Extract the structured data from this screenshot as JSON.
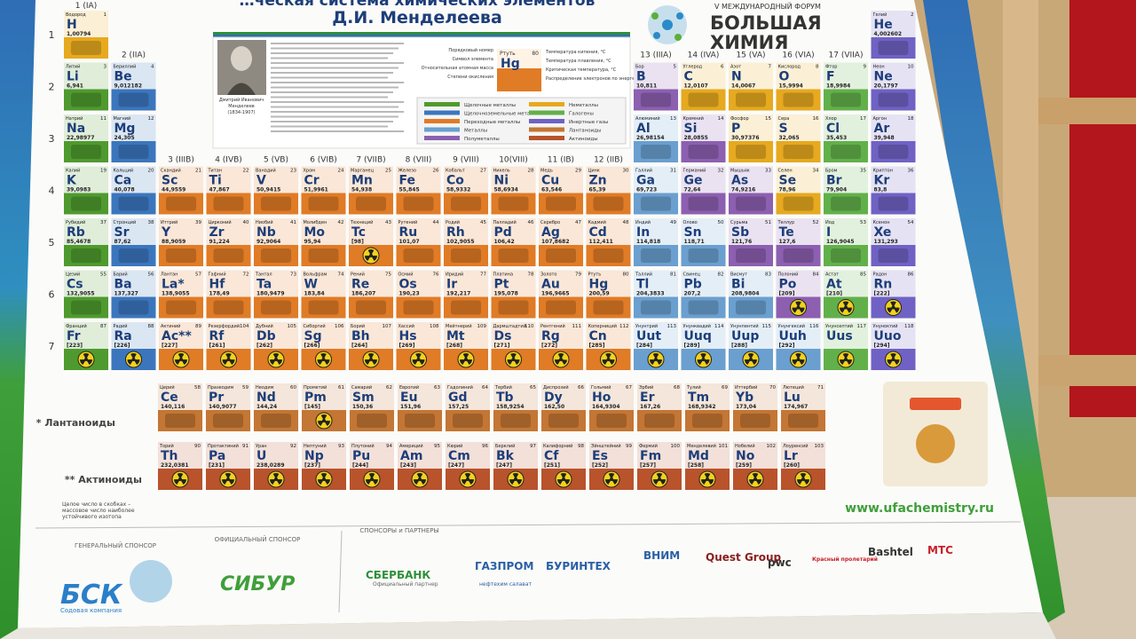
{
  "header": {
    "title_line1": "…ческая система химических элементов",
    "title_line2": "Д.И. Менделеева",
    "forum_edition": "V МЕЖДУНАРОДНЫЙ ФОРУМ",
    "forum_name_1": "БОЛЬШАЯ",
    "forum_name_2": "ХИМИЯ"
  },
  "portrait_caption": [
    "Дмитрий Иванович",
    "Менделеев",
    "(1834-1907)"
  ],
  "key": {
    "element_name": "Ртуть",
    "symbol": "Hg",
    "number": 80,
    "left_labels": [
      "Порядковый номер",
      "Символ элемента",
      "Относительная атомная масса",
      "Степени окисления"
    ],
    "right_labels": [
      "Температура кипения, °С",
      "Температура плавления, °С",
      "Критическая температура, °С",
      "Распределение электронов по энергетическим уровням"
    ]
  },
  "legend": [
    {
      "name": "Щелочные металлы",
      "color": "#4f9a2e"
    },
    {
      "name": "Щелочноземельные металлы",
      "color": "#3b76bd"
    },
    {
      "name": "Переходные металлы",
      "color": "#e07b26"
    },
    {
      "name": "Металлы",
      "color": "#6a9fcf"
    },
    {
      "name": "Полуметаллы",
      "color": "#8c5fb0"
    },
    {
      "name": "Неметаллы",
      "color": "#e6a91f"
    },
    {
      "name": "Галогены",
      "color": "#62b04a"
    },
    {
      "name": "Инертные газы",
      "color": "#6f62c4"
    },
    {
      "name": "Лантаноиды",
      "color": "#c47634"
    },
    {
      "name": "Актиноиды",
      "color": "#b8532c"
    }
  ],
  "groups": [
    "1 (IA)",
    "2 (IIA)",
    "3 (IIIB)",
    "4 (IVB)",
    "5 (VB)",
    "6 (VIB)",
    "7 (VIIB)",
    "8 (VIII)",
    "9 (VIII)",
    "10(VIII)",
    "11 (IB)",
    "12 (IIB)",
    "13 (IIIA)",
    "14 (IVA)",
    "15 (VA)",
    "16 (VIA)",
    "17 (VIIA)",
    "18 (VIIIA)"
  ],
  "periods": [
    "1",
    "2",
    "3",
    "4",
    "5",
    "6",
    "7"
  ],
  "elements": [
    {
      "number": 1,
      "symbol": "H",
      "name": "Водород",
      "mass": "1,00794"
    },
    {
      "number": 2,
      "symbol": "He",
      "name": "Гелий",
      "mass": "4,002602"
    },
    {
      "number": 3,
      "symbol": "Li",
      "name": "Литий",
      "mass": "6,941"
    },
    {
      "number": 4,
      "symbol": "Be",
      "name": "Бериллий",
      "mass": "9,012182"
    },
    {
      "number": 5,
      "symbol": "B",
      "name": "Бор",
      "mass": "10,811"
    },
    {
      "number": 6,
      "symbol": "C",
      "name": "Углерод",
      "mass": "12,0107"
    },
    {
      "number": 7,
      "symbol": "N",
      "name": "Азот",
      "mass": "14,0067"
    },
    {
      "number": 8,
      "symbol": "O",
      "name": "Кислород",
      "mass": "15,9994"
    },
    {
      "number": 9,
      "symbol": "F",
      "name": "Фтор",
      "mass": "18,9984"
    },
    {
      "number": 10,
      "symbol": "Ne",
      "name": "Неон",
      "mass": "20,1797"
    },
    {
      "number": 11,
      "symbol": "Na",
      "name": "Натрий",
      "mass": "22,98977"
    },
    {
      "number": 12,
      "symbol": "Mg",
      "name": "Магний",
      "mass": "24,305"
    },
    {
      "number": 13,
      "symbol": "Al",
      "name": "Алюминий",
      "mass": "26,98154"
    },
    {
      "number": 14,
      "symbol": "Si",
      "name": "Кремний",
      "mass": "28,0855"
    },
    {
      "number": 15,
      "symbol": "P",
      "name": "Фосфор",
      "mass": "30,97376"
    },
    {
      "number": 16,
      "symbol": "S",
      "name": "Сера",
      "mass": "32,065"
    },
    {
      "number": 17,
      "symbol": "Cl",
      "name": "Хлор",
      "mass": "35,453"
    },
    {
      "number": 18,
      "symbol": "Ar",
      "name": "Аргон",
      "mass": "39,948"
    },
    {
      "number": 19,
      "symbol": "K",
      "name": "Калий",
      "mass": "39,0983"
    },
    {
      "number": 20,
      "symbol": "Ca",
      "name": "Кальций",
      "mass": "40,078"
    },
    {
      "number": 21,
      "symbol": "Sc",
      "name": "Скандий",
      "mass": "44,9559"
    },
    {
      "number": 22,
      "symbol": "Ti",
      "name": "Титан",
      "mass": "47,867"
    },
    {
      "number": 23,
      "symbol": "V",
      "name": "Ванадий",
      "mass": "50,9415"
    },
    {
      "number": 24,
      "symbol": "Cr",
      "name": "Хром",
      "mass": "51,9961"
    },
    {
      "number": 25,
      "symbol": "Mn",
      "name": "Марганец",
      "mass": "54,938"
    },
    {
      "number": 26,
      "symbol": "Fe",
      "name": "Железо",
      "mass": "55,845"
    },
    {
      "number": 27,
      "symbol": "Co",
      "name": "Кобальт",
      "mass": "58,9332"
    },
    {
      "number": 28,
      "symbol": "Ni",
      "name": "Никель",
      "mass": "58,6934"
    },
    {
      "number": 29,
      "symbol": "Cu",
      "name": "Медь",
      "mass": "63,546"
    },
    {
      "number": 30,
      "symbol": "Zn",
      "name": "Цинк",
      "mass": "65,39"
    },
    {
      "number": 31,
      "symbol": "Ga",
      "name": "Галлий",
      "mass": "69,723"
    },
    {
      "number": 32,
      "symbol": "Ge",
      "name": "Германий",
      "mass": "72,64"
    },
    {
      "number": 33,
      "symbol": "As",
      "name": "Мышьяк",
      "mass": "74,9216"
    },
    {
      "number": 34,
      "symbol": "Se",
      "name": "Селен",
      "mass": "78,96"
    },
    {
      "number": 35,
      "symbol": "Br",
      "name": "Бром",
      "mass": "79,904"
    },
    {
      "number": 36,
      "symbol": "Kr",
      "name": "Криптон",
      "mass": "83,8"
    },
    {
      "number": 37,
      "symbol": "Rb",
      "name": "Рубидий",
      "mass": "85,4678"
    },
    {
      "number": 38,
      "symbol": "Sr",
      "name": "Стронций",
      "mass": "87,62"
    },
    {
      "number": 39,
      "symbol": "Y",
      "name": "Иттрий",
      "mass": "88,9059"
    },
    {
      "number": 40,
      "symbol": "Zr",
      "name": "Цирконий",
      "mass": "91,224"
    },
    {
      "number": 41,
      "symbol": "Nb",
      "name": "Ниобий",
      "mass": "92,9064"
    },
    {
      "number": 42,
      "symbol": "Mo",
      "name": "Молибден",
      "mass": "95,94"
    },
    {
      "number": 43,
      "symbol": "Tc",
      "name": "Технеций",
      "mass": "[98]"
    },
    {
      "number": 44,
      "symbol": "Ru",
      "name": "Рутений",
      "mass": "101,07"
    },
    {
      "number": 45,
      "symbol": "Rh",
      "name": "Родий",
      "mass": "102,9055"
    },
    {
      "number": 46,
      "symbol": "Pd",
      "name": "Палладий",
      "mass": "106,42"
    },
    {
      "number": 47,
      "symbol": "Ag",
      "name": "Серебро",
      "mass": "107,8682"
    },
    {
      "number": 48,
      "symbol": "Cd",
      "name": "Кадмий",
      "mass": "112,411"
    },
    {
      "number": 49,
      "symbol": "In",
      "name": "Индий",
      "mass": "114,818"
    },
    {
      "number": 50,
      "symbol": "Sn",
      "name": "Олово",
      "mass": "118,71"
    },
    {
      "number": 51,
      "symbol": "Sb",
      "name": "Сурьма",
      "mass": "121,76"
    },
    {
      "number": 52,
      "symbol": "Te",
      "name": "Теллур",
      "mass": "127,6"
    },
    {
      "number": 53,
      "symbol": "I",
      "name": "Иод",
      "mass": "126,9045"
    },
    {
      "number": 54,
      "symbol": "Xe",
      "name": "Ксенон",
      "mass": "131,293"
    },
    {
      "number": 55,
      "symbol": "Cs",
      "name": "Цезий",
      "mass": "132,9055"
    },
    {
      "number": 56,
      "symbol": "Ba",
      "name": "Барий",
      "mass": "137,327"
    },
    {
      "number": 57,
      "symbol": "La*",
      "name": "Лантан",
      "mass": "138,9055"
    },
    {
      "number": 58,
      "symbol": "Ce",
      "name": "Церий",
      "mass": "140,116"
    },
    {
      "number": 59,
      "symbol": "Pr",
      "name": "Празеодим",
      "mass": "140,9077"
    },
    {
      "number": 60,
      "symbol": "Nd",
      "name": "Неодим",
      "mass": "144,24"
    },
    {
      "number": 61,
      "symbol": "Pm",
      "name": "Прометий",
      "mass": "[145]"
    },
    {
      "number": 62,
      "symbol": "Sm",
      "name": "Самарий",
      "mass": "150,36"
    },
    {
      "number": 63,
      "symbol": "Eu",
      "name": "Европий",
      "mass": "151,96"
    },
    {
      "number": 64,
      "symbol": "Gd",
      "name": "Гадолиний",
      "mass": "157,25"
    },
    {
      "number": 65,
      "symbol": "Tb",
      "name": "Тербий",
      "mass": "158,9254"
    },
    {
      "number": 66,
      "symbol": "Dy",
      "name": "Диспрозий",
      "mass": "162,50"
    },
    {
      "number": 67,
      "symbol": "Ho",
      "name": "Гольмий",
      "mass": "164,9304"
    },
    {
      "number": 68,
      "symbol": "Er",
      "name": "Эрбий",
      "mass": "167,26"
    },
    {
      "number": 69,
      "symbol": "Tm",
      "name": "Тулий",
      "mass": "168,9342"
    },
    {
      "number": 70,
      "symbol": "Yb",
      "name": "Иттербий",
      "mass": "173,04"
    },
    {
      "number": 71,
      "symbol": "Lu",
      "name": "Лютеций",
      "mass": "174,967"
    },
    {
      "number": 72,
      "symbol": "Hf",
      "name": "Гафний",
      "mass": "178,49"
    },
    {
      "number": 73,
      "symbol": "Ta",
      "name": "Тантал",
      "mass": "180,9479"
    },
    {
      "number": 74,
      "symbol": "W",
      "name": "Вольфрам",
      "mass": "183,84"
    },
    {
      "number": 75,
      "symbol": "Re",
      "name": "Рений",
      "mass": "186,207"
    },
    {
      "number": 76,
      "symbol": "Os",
      "name": "Осмий",
      "mass": "190,23"
    },
    {
      "number": 77,
      "symbol": "Ir",
      "name": "Иридий",
      "mass": "192,217"
    },
    {
      "number": 78,
      "symbol": "Pt",
      "name": "Платина",
      "mass": "195,078"
    },
    {
      "number": 79,
      "symbol": "Au",
      "name": "Золото",
      "mass": "196,9665"
    },
    {
      "number": 80,
      "symbol": "Hg",
      "name": "Ртуть",
      "mass": "200,59"
    },
    {
      "number": 81,
      "symbol": "Tl",
      "name": "Таллий",
      "mass": "204,3833"
    },
    {
      "number": 82,
      "symbol": "Pb",
      "name": "Свинец",
      "mass": "207,2"
    },
    {
      "number": 83,
      "symbol": "Bi",
      "name": "Висмут",
      "mass": "208,9804"
    },
    {
      "number": 84,
      "symbol": "Po",
      "name": "Полоний",
      "mass": "[209]"
    },
    {
      "number": 85,
      "symbol": "At",
      "name": "Астат",
      "mass": "[210]"
    },
    {
      "number": 86,
      "symbol": "Rn",
      "name": "Радон",
      "mass": "[222]"
    },
    {
      "number": 87,
      "symbol": "Fr",
      "name": "Франций",
      "mass": "[223]"
    },
    {
      "number": 88,
      "symbol": "Ra",
      "name": "Радий",
      "mass": "[226]"
    },
    {
      "number": 89,
      "symbol": "Ac**",
      "name": "Актиний",
      "mass": "[227]"
    },
    {
      "number": 90,
      "symbol": "Th",
      "name": "Торий",
      "mass": "232,0381"
    },
    {
      "number": 91,
      "symbol": "Pa",
      "name": "Протактиний",
      "mass": "[231]"
    },
    {
      "number": 92,
      "symbol": "U",
      "name": "Уран",
      "mass": "238,0289"
    },
    {
      "number": 93,
      "symbol": "Np",
      "name": "Нептуний",
      "mass": "[237]"
    },
    {
      "number": 94,
      "symbol": "Pu",
      "name": "Плутоний",
      "mass": "[244]"
    },
    {
      "number": 95,
      "symbol": "Am",
      "name": "Америций",
      "mass": "[243]"
    },
    {
      "number": 96,
      "symbol": "Cm",
      "name": "Кюрий",
      "mass": "[247]"
    },
    {
      "number": 97,
      "symbol": "Bk",
      "name": "Берклий",
      "mass": "[247]"
    },
    {
      "number": 98,
      "symbol": "Cf",
      "name": "Калифорний",
      "mass": "[251]"
    },
    {
      "number": 99,
      "symbol": "Es",
      "name": "Эйнштейний",
      "mass": "[252]"
    },
    {
      "number": 100,
      "symbol": "Fm",
      "name": "Фермий",
      "mass": "[257]"
    },
    {
      "number": 101,
      "symbol": "Md",
      "name": "Менделевий",
      "mass": "[258]"
    },
    {
      "number": 102,
      "symbol": "No",
      "name": "Нобелий",
      "mass": "[259]"
    },
    {
      "number": 103,
      "symbol": "Lr",
      "name": "Лоуренсий",
      "mass": "[260]"
    },
    {
      "number": 104,
      "symbol": "Rf",
      "name": "Резерфордий",
      "mass": "[261]"
    },
    {
      "number": 105,
      "symbol": "Db",
      "name": "Дубний",
      "mass": "[262]"
    },
    {
      "number": 106,
      "symbol": "Sg",
      "name": "Сиборгий",
      "mass": "[266]"
    },
    {
      "number": 107,
      "symbol": "Bh",
      "name": "Борий",
      "mass": "[264]"
    },
    {
      "number": 108,
      "symbol": "Hs",
      "name": "Хассий",
      "mass": "[269]"
    },
    {
      "number": 109,
      "symbol": "Mt",
      "name": "Мейтнерий",
      "mass": "[268]"
    },
    {
      "number": 110,
      "symbol": "Ds",
      "name": "Дармштадтий",
      "mass": "[271]"
    },
    {
      "number": 111,
      "symbol": "Rg",
      "name": "Рентгений",
      "mass": "[272]"
    },
    {
      "number": 112,
      "symbol": "Cn",
      "name": "Коперниций",
      "mass": "[285]"
    },
    {
      "number": 113,
      "symbol": "Uut",
      "name": "Унунтрий",
      "mass": "[284]"
    },
    {
      "number": 114,
      "symbol": "Uuq",
      "name": "Унунквадий",
      "mass": "[289]"
    },
    {
      "number": 115,
      "symbol": "Uup",
      "name": "Унунпентий",
      "mass": "[288]"
    },
    {
      "number": 116,
      "symbol": "Uuh",
      "name": "Унунгексий",
      "mass": "[292]"
    },
    {
      "number": 117,
      "symbol": "Uus",
      "name": "Унунсептий"
    },
    {
      "number": 118,
      "symbol": "Uuo",
      "name": "Унуноктий",
      "mass": "[294]"
    }
  ],
  "series_labels": {
    "lanthanides": "* Лантаноиды",
    "actinides": "** Актиноиды"
  },
  "footnote": [
    "Целое число в скобках –",
    "массовое число наиболее",
    "устойчивого изотопа"
  ],
  "website": "www.ufachemistry.ru",
  "sponsors": {
    "general_heading": "ГЕНЕРАЛЬНЫЙ СПОНСОР",
    "general_name": "БСК",
    "general_sub": "Содовая компания",
    "official_heading": "ОФИЦИАЛЬНЫЙ СПОНСОР",
    "official_name": "СИБУР",
    "partners_heading": "СПОНСОРЫ и ПАРТНЕРЫ",
    "partners": [
      "СБЕРБАНК",
      "ГАЗПРОМ",
      "БУРИНТЕХ",
      "ВНИМ",
      "Quest Group",
      "pwc",
      "Красный пролетарий",
      "Bashtel",
      "МТС"
    ],
    "sberbank_sub": "Официальный партнер",
    "gazprom_sub": "нефтехим салават"
  }
}
